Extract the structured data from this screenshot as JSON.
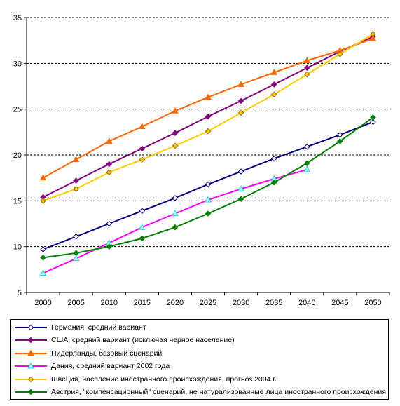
{
  "chart_data": {
    "type": "line",
    "x": [
      "2000",
      "2005",
      "2010",
      "2015",
      "2020",
      "2025",
      "2030",
      "2035",
      "2040",
      "2045",
      "2050"
    ],
    "ylim": [
      5,
      35
    ],
    "yticks": [
      5,
      10,
      15,
      20,
      25,
      30,
      35
    ],
    "grid": "horizontal dashed",
    "legend_position": "bottom",
    "series": [
      {
        "name": "Германия, средний вариант",
        "color": "#000080",
        "marker": "diamond-open",
        "values": [
          9.7,
          11.1,
          12.5,
          13.9,
          15.3,
          16.8,
          18.2,
          19.6,
          20.9,
          22.2,
          23.6
        ]
      },
      {
        "name": "США, средний вариант (исключая черное население)",
        "color": "#800080",
        "marker": "diamond-filled",
        "values": [
          15.4,
          17.2,
          19.0,
          20.7,
          22.4,
          24.2,
          25.9,
          27.7,
          29.5,
          31.3,
          32.9
        ]
      },
      {
        "name": "Нидерланды, базовый сценарий",
        "color": "#FF6600",
        "marker": "triangle",
        "values": [
          17.5,
          19.5,
          21.5,
          23.1,
          24.8,
          26.3,
          27.7,
          29.0,
          30.3,
          31.4,
          32.7
        ]
      },
      {
        "name": "Дания, средний вариант 2002 года",
        "color": "#FF00FF",
        "marker": "triangle-cyan",
        "values": [
          7.1,
          8.7,
          10.4,
          12.1,
          13.6,
          15.1,
          16.3,
          17.4,
          18.4,
          null,
          null
        ]
      },
      {
        "name": "Швеция, население иностранного происхождения, прогноз 2004 г.",
        "color": "#FFCC00",
        "marker": "diamond-orange",
        "values": [
          15.0,
          16.3,
          18.1,
          19.5,
          21.0,
          22.6,
          24.6,
          26.6,
          28.8,
          31.0,
          33.2
        ]
      },
      {
        "name": "Австрия, \"компенсационный\" сценарий, не натурализованные лица иностранного происхождения",
        "color": "#008000",
        "marker": "diamond-filled",
        "values": [
          8.8,
          9.3,
          10.0,
          10.9,
          12.1,
          13.6,
          15.2,
          17.0,
          19.1,
          21.5,
          24.1
        ]
      }
    ]
  }
}
